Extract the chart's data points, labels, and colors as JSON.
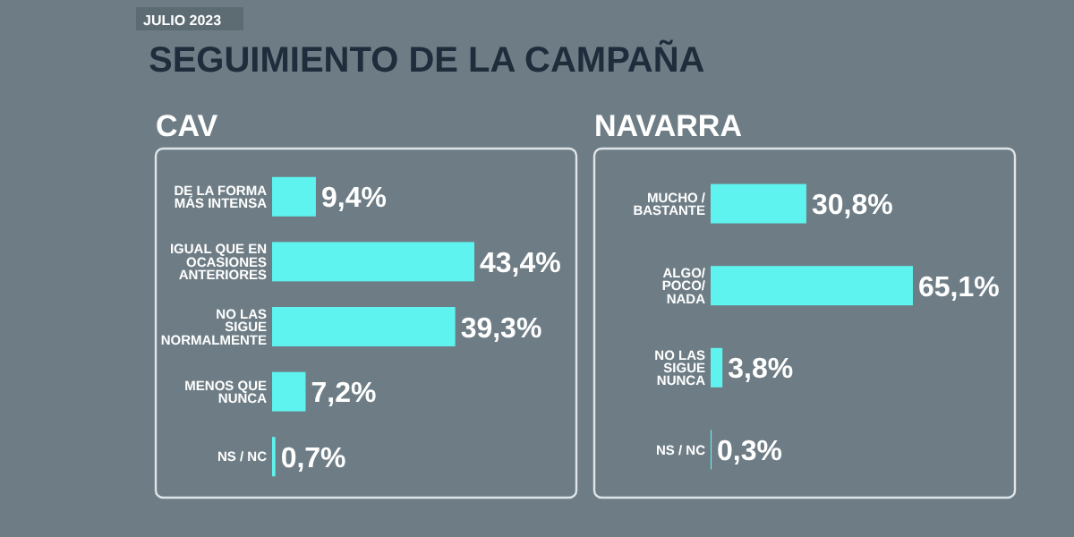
{
  "chart_data": [
    {
      "type": "bar",
      "orientation": "horizontal",
      "title": "SEGUIMIENTO DE LA CAMPAÑA",
      "subtitle": "CAV",
      "annotations": [
        "JULIO 2023"
      ],
      "categories": [
        "DE LA FORMA\nMÁS INTENSA",
        "IGUAL QUE EN\nOCASIONES\nANTERIORES",
        "NO LAS\nSIGUE\nNORMALMENTE",
        "MENOS QUE\nNUNCA",
        "NS / NC"
      ],
      "values": [
        9.4,
        43.4,
        39.3,
        7.2,
        0.7
      ],
      "color": "#5ef3ee",
      "value_labels": [
        "9,4%",
        "43,4%",
        "39,3%",
        "7,2%",
        "0,7%"
      ]
    },
    {
      "type": "bar",
      "orientation": "horizontal",
      "subtitle": "NAVARRA",
      "categories": [
        "MUCHO /\nBASTANTE",
        "ALGO/\nPOCO/\nNADA",
        "NO LAS\nSIGUE\nNUNCA",
        "NS / NC"
      ],
      "values": [
        30.8,
        65.1,
        3.8,
        0.3
      ],
      "color": "#5ef3ee",
      "value_labels": [
        "30,8%",
        "65,1%",
        "3,8%",
        "0,3%"
      ]
    }
  ]
}
